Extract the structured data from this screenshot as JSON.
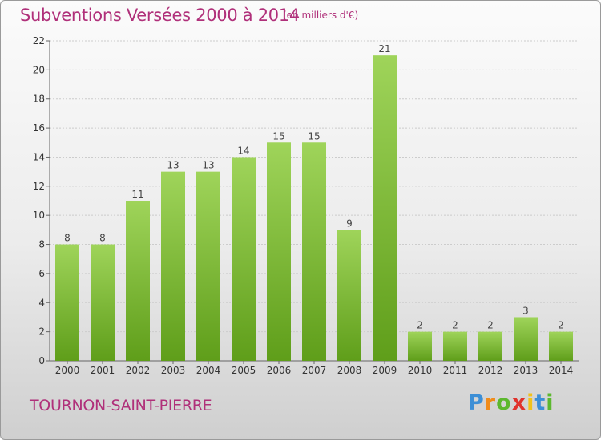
{
  "header": {
    "title": "Subventions Versées 2000 à 2014",
    "subtitle": "(en milliers d'€)"
  },
  "footer": {
    "commune": "TOURNON-SAINT-PIERRE",
    "logo_parts": [
      "P",
      "r",
      "o",
      "x",
      "i",
      "t",
      "i"
    ]
  },
  "colors": {
    "title": "#b0307a",
    "bar_top": "#9fd45a",
    "bar_bottom": "#5f9e1a"
  },
  "chart_data": {
    "type": "bar",
    "title": "Subventions Versées 2000 à 2014",
    "subtitle": "(en milliers d'€)",
    "categories": [
      "2000",
      "2001",
      "2002",
      "2003",
      "2004",
      "2005",
      "2006",
      "2007",
      "2008",
      "2009",
      "2010",
      "2011",
      "2012",
      "2013",
      "2014"
    ],
    "values": [
      8,
      8,
      11,
      13,
      13,
      14,
      15,
      15,
      9,
      21,
      2,
      2,
      2,
      3,
      2
    ],
    "value_labels": [
      "8",
      "8",
      "11",
      "13",
      "13",
      "14",
      "15",
      "15",
      "9",
      "21",
      "2",
      "2",
      "2",
      "3",
      "2"
    ],
    "ylim": [
      0,
      22
    ],
    "yticks": [
      0,
      2,
      4,
      6,
      8,
      10,
      12,
      14,
      16,
      18,
      20,
      22
    ],
    "ytick_labels": [
      "0",
      "2",
      "4",
      "6",
      "8",
      "10",
      "12",
      "14",
      "16",
      "18",
      "20",
      "22"
    ],
    "xlabel": "",
    "ylabel": "",
    "grid": true,
    "legend": "none"
  }
}
